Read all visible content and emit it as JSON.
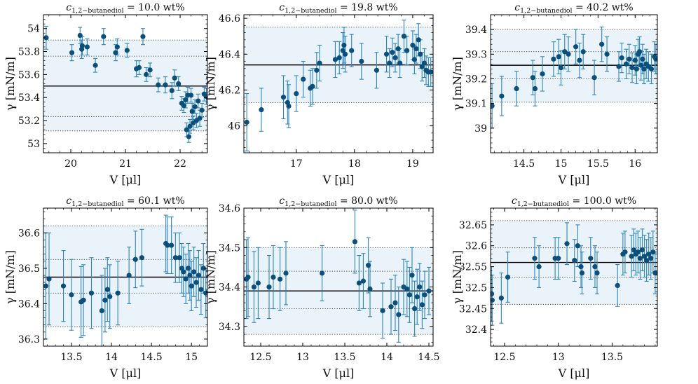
{
  "figure": {
    "xlabel": "V [μl]",
    "ylabel": "γ [mN/m]",
    "colors": {
      "marker": "#0b4f7d",
      "errorbar": "#2a85c0",
      "band": "#eaf3fa",
      "mean_line": "#000000",
      "dotted": "#222222"
    }
  },
  "chart_data": [
    {
      "type": "scatter",
      "title_prefix": "c",
      "title_sub": "1,2−butanediol",
      "title_value": " = 10.0 wt%",
      "xlabel": "V [μl]",
      "ylabel": "γ [mN/m]",
      "xlim": [
        19.5,
        22.5
      ],
      "ylim": [
        52.92,
        54.12
      ],
      "xticks": [
        20,
        21,
        22
      ],
      "xtick_labels": [
        "20",
        "21",
        "22"
      ],
      "yticks": [
        53,
        53.2,
        53.4,
        53.6,
        53.8,
        54
      ],
      "ytick_labels": [
        "53",
        "53.2",
        "53.4",
        "53.6",
        "53.8",
        "54"
      ],
      "mean": 53.5,
      "band": [
        53.11,
        53.9
      ],
      "dotted": [
        53.11,
        53.235,
        53.76,
        53.9
      ],
      "points": [
        [
          19.55,
          53.92,
          0.1
        ],
        [
          20.02,
          53.79,
          0.07
        ],
        [
          20.17,
          53.94,
          0.07
        ],
        [
          20.2,
          53.82,
          0.08
        ],
        [
          20.21,
          53.85,
          0.08
        ],
        [
          20.3,
          53.84,
          0.07
        ],
        [
          20.45,
          53.68,
          0.06
        ],
        [
          20.6,
          53.93,
          0.07
        ],
        [
          20.82,
          53.79,
          0.07
        ],
        [
          20.85,
          53.84,
          0.07
        ],
        [
          21.03,
          53.81,
          0.06
        ],
        [
          21.2,
          53.65,
          0.07
        ],
        [
          21.25,
          53.66,
          0.06
        ],
        [
          21.32,
          53.93,
          0.07
        ],
        [
          21.38,
          53.6,
          0.06
        ],
        [
          21.45,
          53.64,
          0.06
        ],
        [
          21.6,
          53.51,
          0.06
        ],
        [
          21.73,
          53.51,
          0.07
        ],
        [
          21.85,
          53.46,
          0.07
        ],
        [
          21.9,
          53.57,
          0.07
        ],
        [
          21.97,
          53.52,
          0.06
        ],
        [
          22.03,
          53.35,
          0.06
        ],
        [
          22.07,
          53.33,
          0.06
        ],
        [
          22.1,
          53.38,
          0.07
        ],
        [
          22.12,
          53.12,
          0.06
        ],
        [
          22.14,
          53.42,
          0.07
        ],
        [
          22.16,
          53.06,
          0.05
        ],
        [
          22.18,
          53.15,
          0.06
        ],
        [
          22.2,
          53.42,
          0.06
        ],
        [
          22.22,
          53.28,
          0.07
        ],
        [
          22.24,
          53.18,
          0.06
        ],
        [
          22.27,
          53.32,
          0.06
        ],
        [
          22.3,
          53.2,
          0.06
        ],
        [
          22.33,
          53.37,
          0.06
        ],
        [
          22.36,
          53.22,
          0.07
        ],
        [
          22.4,
          53.29,
          0.06
        ],
        [
          22.44,
          53.43,
          0.06
        ],
        [
          22.48,
          53.41,
          0.07
        ]
      ]
    },
    {
      "type": "scatter",
      "title_prefix": "c",
      "title_sub": "1,2−butanediol",
      "title_value": " = 19.8 wt%",
      "xlabel": "V [μl]",
      "ylabel": "γ [mN/m]",
      "xlim": [
        16.1,
        19.35
      ],
      "ylim": [
        45.85,
        46.62
      ],
      "xticks": [
        17,
        18,
        19
      ],
      "xtick_labels": [
        "17",
        "18",
        "19"
      ],
      "yticks": [
        46,
        46.2,
        46.4,
        46.6
      ],
      "ytick_labels": [
        "46",
        "46.2",
        "46.4",
        "46.6"
      ],
      "mean": 46.34,
      "band": [
        46.13,
        46.55
      ],
      "dotted": [
        46.13,
        46.55
      ],
      "points": [
        [
          16.15,
          46.02,
          0.16
        ],
        [
          16.4,
          46.09,
          0.12
        ],
        [
          16.78,
          46.16,
          0.12
        ],
        [
          16.85,
          46.13,
          0.12
        ],
        [
          16.87,
          46.11,
          0.12
        ],
        [
          17.0,
          46.18,
          0.1
        ],
        [
          17.12,
          46.26,
          0.1
        ],
        [
          17.24,
          46.21,
          0.1
        ],
        [
          17.28,
          46.22,
          0.1
        ],
        [
          17.35,
          46.31,
          0.1
        ],
        [
          17.4,
          46.35,
          0.1
        ],
        [
          17.67,
          46.37,
          0.1
        ],
        [
          17.74,
          46.38,
          0.09
        ],
        [
          17.8,
          46.42,
          0.1
        ],
        [
          17.82,
          46.45,
          0.1
        ],
        [
          17.84,
          46.4,
          0.1
        ],
        [
          17.95,
          46.42,
          0.09
        ],
        [
          18.12,
          46.36,
          0.1
        ],
        [
          18.38,
          46.31,
          0.1
        ],
        [
          18.55,
          46.4,
          0.1
        ],
        [
          18.6,
          46.35,
          0.08
        ],
        [
          18.65,
          46.41,
          0.08
        ],
        [
          18.7,
          46.38,
          0.08
        ],
        [
          18.75,
          46.43,
          0.08
        ],
        [
          18.78,
          46.35,
          0.08
        ],
        [
          18.85,
          46.5,
          0.09
        ],
        [
          18.9,
          46.42,
          0.08
        ],
        [
          19.0,
          46.45,
          0.08
        ],
        [
          19.03,
          46.37,
          0.08
        ],
        [
          19.06,
          46.43,
          0.08
        ],
        [
          19.1,
          46.48,
          0.09
        ],
        [
          19.13,
          46.4,
          0.08
        ],
        [
          19.16,
          46.33,
          0.08
        ],
        [
          19.2,
          46.35,
          0.08
        ],
        [
          19.23,
          46.31,
          0.08
        ],
        [
          19.27,
          46.3,
          0.08
        ],
        [
          19.31,
          46.3,
          0.08
        ]
      ]
    },
    {
      "type": "scatter",
      "title_prefix": "c",
      "title_sub": "1,2−butanediol",
      "title_value": " = 40.2 wt%",
      "xlabel": "V [μl]",
      "ylabel": "γ [mN/m]",
      "xlim": [
        14.05,
        16.3
      ],
      "ylim": [
        38.9,
        39.46
      ],
      "xticks": [
        14.5,
        15,
        15.5,
        16
      ],
      "xtick_labels": [
        "14.5",
        "15",
        "15.5",
        "16"
      ],
      "yticks": [
        39,
        39.1,
        39.2,
        39.3,
        39.4
      ],
      "ytick_labels": [
        "39",
        "39.1",
        "39.2",
        "39.3",
        "39.4"
      ],
      "mean": 39.255,
      "band": [
        39.105,
        39.4
      ],
      "dotted": [
        39.105,
        39.2,
        39.31,
        39.4
      ],
      "points": [
        [
          14.07,
          39.09,
          0.09
        ],
        [
          14.2,
          39.13,
          0.08
        ],
        [
          14.4,
          39.16,
          0.07
        ],
        [
          14.62,
          39.205,
          0.07
        ],
        [
          14.65,
          39.16,
          0.07
        ],
        [
          14.75,
          39.22,
          0.07
        ],
        [
          14.9,
          39.28,
          0.07
        ],
        [
          14.97,
          39.29,
          0.07
        ],
        [
          15.0,
          39.245,
          0.07
        ],
        [
          15.05,
          39.31,
          0.07
        ],
        [
          15.1,
          39.3,
          0.07
        ],
        [
          15.2,
          39.33,
          0.07
        ],
        [
          15.25,
          39.275,
          0.07
        ],
        [
          15.3,
          39.31,
          0.07
        ],
        [
          15.45,
          39.205,
          0.07
        ],
        [
          15.55,
          39.34,
          0.07
        ],
        [
          15.62,
          39.3,
          0.07
        ],
        [
          15.78,
          39.25,
          0.06
        ],
        [
          15.82,
          39.285,
          0.06
        ],
        [
          15.88,
          39.26,
          0.06
        ],
        [
          15.92,
          39.28,
          0.06
        ],
        [
          15.96,
          39.245,
          0.06
        ],
        [
          16.0,
          39.275,
          0.06
        ],
        [
          16.02,
          39.24,
          0.06
        ],
        [
          16.04,
          39.3,
          0.06
        ],
        [
          16.06,
          39.31,
          0.06
        ],
        [
          16.08,
          39.255,
          0.06
        ],
        [
          16.1,
          39.28,
          0.06
        ],
        [
          16.12,
          39.24,
          0.06
        ],
        [
          16.15,
          39.26,
          0.06
        ],
        [
          16.18,
          39.25,
          0.06
        ],
        [
          16.22,
          39.24,
          0.06
        ],
        [
          16.26,
          39.29,
          0.06
        ],
        [
          16.28,
          39.28,
          0.06
        ]
      ]
    },
    {
      "type": "scatter",
      "title_prefix": "c",
      "title_sub": "1,2−butanediol",
      "title_value": " = 60.1 wt%",
      "xlabel": "V [μl]",
      "ylabel": "γ [mN/m]",
      "xlim": [
        13.15,
        15.2
      ],
      "ylim": [
        36.28,
        36.67
      ],
      "xticks": [
        13.5,
        14,
        14.5,
        15
      ],
      "xtick_labels": [
        "13.5",
        "14",
        "14.5",
        "15"
      ],
      "yticks": [
        36.3,
        36.4,
        36.5,
        36.6
      ],
      "ytick_labels": [
        "36.3",
        "36.4",
        "36.5",
        "36.6"
      ],
      "mean": 36.475,
      "band": [
        36.335,
        36.62
      ],
      "dotted": [
        36.335,
        36.43,
        36.525,
        36.62
      ],
      "points": [
        [
          13.18,
          36.45,
          0.15
        ],
        [
          13.22,
          36.47,
          0.13
        ],
        [
          13.4,
          36.45,
          0.1
        ],
        [
          13.5,
          36.425,
          0.1
        ],
        [
          13.62,
          36.405,
          0.1
        ],
        [
          13.65,
          36.41,
          0.1
        ],
        [
          13.75,
          36.43,
          0.1
        ],
        [
          13.88,
          36.38,
          0.1
        ],
        [
          13.92,
          36.41,
          0.09
        ],
        [
          13.95,
          36.44,
          0.09
        ],
        [
          13.98,
          36.42,
          0.09
        ],
        [
          14.08,
          36.43,
          0.09
        ],
        [
          14.22,
          36.48,
          0.08
        ],
        [
          14.3,
          36.525,
          0.08
        ],
        [
          14.38,
          36.53,
          0.08
        ],
        [
          14.68,
          36.57,
          0.08
        ],
        [
          14.7,
          36.565,
          0.08
        ],
        [
          14.75,
          36.565,
          0.08
        ],
        [
          14.8,
          36.53,
          0.07
        ],
        [
          14.85,
          36.53,
          0.07
        ],
        [
          14.88,
          36.5,
          0.07
        ],
        [
          14.9,
          36.49,
          0.07
        ],
        [
          14.93,
          36.47,
          0.07
        ],
        [
          14.96,
          36.5,
          0.07
        ],
        [
          14.98,
          36.48,
          0.07
        ],
        [
          15.0,
          36.45,
          0.07
        ],
        [
          15.03,
          36.49,
          0.07
        ],
        [
          15.06,
          36.46,
          0.07
        ],
        [
          15.09,
          36.48,
          0.07
        ],
        [
          15.12,
          36.44,
          0.07
        ],
        [
          15.15,
          36.5,
          0.07
        ],
        [
          15.18,
          36.43,
          0.07
        ]
      ]
    },
    {
      "type": "scatter",
      "title_prefix": "c",
      "title_sub": "1,2−butanediol",
      "title_value": " = 80.0 wt%",
      "xlabel": "V [μl]",
      "ylabel": "γ [mN/m]",
      "xlim": [
        12.3,
        14.55
      ],
      "ylim": [
        34.25,
        34.6
      ],
      "xticks": [
        12.5,
        13,
        13.5,
        14,
        14.5
      ],
      "xtick_labels": [
        "12.5",
        "13",
        "13.5",
        "14",
        "14.5"
      ],
      "yticks": [
        34.3,
        34.4,
        34.5,
        34.6
      ],
      "ytick_labels": [
        "34.3",
        "34.4",
        "34.5",
        "34.6"
      ],
      "mean": 34.39,
      "band": [
        34.28,
        34.5
      ],
      "dotted": [
        34.28,
        34.345,
        34.44,
        34.5
      ],
      "points": [
        [
          12.33,
          34.42,
          0.1
        ],
        [
          12.35,
          34.425,
          0.1
        ],
        [
          12.42,
          34.4,
          0.09
        ],
        [
          12.47,
          34.41,
          0.09
        ],
        [
          12.6,
          34.4,
          0.08
        ],
        [
          12.65,
          34.425,
          0.08
        ],
        [
          12.73,
          34.42,
          0.08
        ],
        [
          12.8,
          34.435,
          0.08
        ],
        [
          13.23,
          34.435,
          0.07
        ],
        [
          13.62,
          34.515,
          0.08
        ],
        [
          13.67,
          34.41,
          0.07
        ],
        [
          13.72,
          34.415,
          0.07
        ],
        [
          13.78,
          34.455,
          0.07
        ],
        [
          13.8,
          34.395,
          0.07
        ],
        [
          13.95,
          34.34,
          0.07
        ],
        [
          14.05,
          34.35,
          0.07
        ],
        [
          14.1,
          34.36,
          0.07
        ],
        [
          14.14,
          34.33,
          0.07
        ],
        [
          14.2,
          34.4,
          0.07
        ],
        [
          14.24,
          34.395,
          0.07
        ],
        [
          14.27,
          34.38,
          0.07
        ],
        [
          14.3,
          34.43,
          0.07
        ],
        [
          14.33,
          34.345,
          0.07
        ],
        [
          14.36,
          34.375,
          0.07
        ],
        [
          14.39,
          34.4,
          0.06
        ],
        [
          14.42,
          34.355,
          0.06
        ],
        [
          14.45,
          34.38,
          0.06
        ],
        [
          14.5,
          34.39,
          0.06
        ]
      ]
    },
    {
      "type": "scatter",
      "title_prefix": "c",
      "title_sub": "1,2−butanediol",
      "title_value": " = 100.0 wt%",
      "xlabel": "V [μl]",
      "ylabel": "γ [mN/m]",
      "xlim": [
        12.37,
        13.92
      ],
      "ylim": [
        32.36,
        32.69
      ],
      "xticks": [
        12.5,
        13,
        13.5
      ],
      "xtick_labels": [
        "12.5",
        "13",
        "13.5"
      ],
      "yticks": [
        32.4,
        32.45,
        32.5,
        32.55,
        32.6,
        32.65
      ],
      "ytick_labels": [
        "32.4",
        "32.45",
        "32.5",
        "32.55",
        "32.6",
        "32.65"
      ],
      "mean": 32.56,
      "band": [
        32.46,
        32.66
      ],
      "dotted": [
        32.46,
        32.525,
        32.595,
        32.66
      ],
      "points": [
        [
          12.38,
          32.485,
          0.065
        ],
        [
          12.385,
          32.47,
          0.06
        ],
        [
          12.47,
          32.475,
          0.06
        ],
        [
          12.53,
          32.525,
          0.06
        ],
        [
          12.78,
          32.57,
          0.05
        ],
        [
          12.82,
          32.55,
          0.05
        ],
        [
          12.97,
          32.57,
          0.05
        ],
        [
          13.0,
          32.57,
          0.05
        ],
        [
          13.08,
          32.605,
          0.05
        ],
        [
          13.15,
          32.565,
          0.05
        ],
        [
          13.18,
          32.6,
          0.05
        ],
        [
          13.21,
          32.55,
          0.05
        ],
        [
          13.22,
          32.535,
          0.05
        ],
        [
          13.3,
          32.57,
          0.05
        ],
        [
          13.34,
          32.55,
          0.05
        ],
        [
          13.36,
          32.535,
          0.05
        ],
        [
          13.55,
          32.505,
          0.05
        ],
        [
          13.6,
          32.58,
          0.05
        ],
        [
          13.62,
          32.585,
          0.05
        ],
        [
          13.68,
          32.575,
          0.05
        ],
        [
          13.7,
          32.59,
          0.05
        ],
        [
          13.72,
          32.58,
          0.05
        ],
        [
          13.74,
          32.585,
          0.05
        ],
        [
          13.76,
          32.57,
          0.05
        ],
        [
          13.78,
          32.59,
          0.05
        ],
        [
          13.8,
          32.575,
          0.05
        ],
        [
          13.82,
          32.565,
          0.05
        ],
        [
          13.84,
          32.58,
          0.05
        ],
        [
          13.86,
          32.57,
          0.05
        ],
        [
          13.88,
          32.585,
          0.05
        ],
        [
          13.9,
          32.535,
          0.05
        ]
      ]
    }
  ]
}
